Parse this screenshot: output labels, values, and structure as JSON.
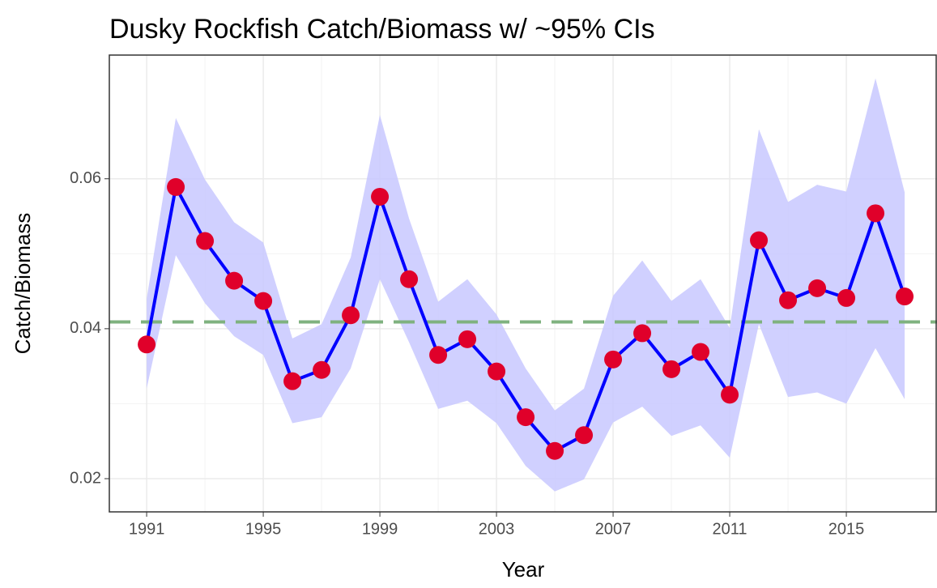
{
  "chart_data": {
    "type": "line",
    "title": "Dusky Rockfish Catch/Biomass w/ ~95% CIs",
    "xlabel": "Year",
    "ylabel": "Catch/Biomass",
    "x": [
      1991,
      1992,
      1993,
      1994,
      1995,
      1996,
      1997,
      1998,
      1999,
      2000,
      2001,
      2002,
      2003,
      2004,
      2005,
      2006,
      2007,
      2008,
      2009,
      2010,
      2011,
      2012,
      2013,
      2014,
      2015,
      2016,
      2017
    ],
    "values": [
      0.0379,
      0.0589,
      0.0517,
      0.0464,
      0.0437,
      0.033,
      0.0345,
      0.0418,
      0.0576,
      0.0466,
      0.0365,
      0.0386,
      0.0343,
      0.0282,
      0.0237,
      0.0258,
      0.0359,
      0.0394,
      0.0346,
      0.0369,
      0.0312,
      0.0518,
      0.0438,
      0.0454,
      0.0441,
      0.0554,
      0.0443
    ],
    "ci_lower": [
      0.032,
      0.0498,
      0.0434,
      0.039,
      0.0365,
      0.0274,
      0.0282,
      0.0347,
      0.0466,
      0.0382,
      0.0293,
      0.0304,
      0.0274,
      0.0217,
      0.0183,
      0.0199,
      0.0275,
      0.0296,
      0.0257,
      0.0271,
      0.0228,
      0.0406,
      0.0309,
      0.0315,
      0.03,
      0.0374,
      0.0306
    ],
    "ci_upper": [
      0.044,
      0.0681,
      0.0599,
      0.0542,
      0.0515,
      0.0387,
      0.0406,
      0.0495,
      0.0685,
      0.0547,
      0.0436,
      0.0466,
      0.0419,
      0.0347,
      0.0291,
      0.032,
      0.0444,
      0.0491,
      0.0437,
      0.0466,
      0.0401,
      0.0666,
      0.0569,
      0.0592,
      0.0583,
      0.0734,
      0.0582
    ],
    "hline": 0.0409,
    "line_color": "#0000ff",
    "point_color": "#e0002a",
    "band_color": "#c8c8ff",
    "hline_color": "#7fb27f",
    "xlim": [
      1989.72,
      2018.11
    ],
    "xticks": [
      1991,
      1995,
      1999,
      2003,
      2007,
      2011,
      2015
    ],
    "ylim": [
      0.01557,
      0.0765
    ],
    "yticks": [
      0.02,
      0.04,
      0.06
    ],
    "grid": true
  }
}
